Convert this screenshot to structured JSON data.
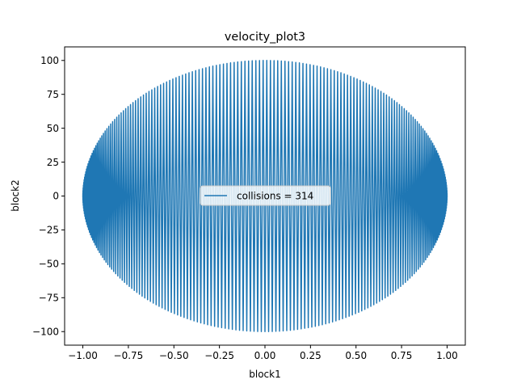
{
  "chart_data": {
    "type": "line",
    "title": "velocity_plot3",
    "xlabel": "block1",
    "ylabel": "block2",
    "xlim": [
      -1.1,
      1.1
    ],
    "ylim": [
      -110,
      110
    ],
    "xticks": [
      -1.0,
      -0.75,
      -0.5,
      -0.25,
      0.0,
      0.25,
      0.5,
      0.75,
      1.0
    ],
    "xtick_labels": [
      "−1.00",
      "−0.75",
      "−0.50",
      "−0.25",
      "0.00",
      "0.25",
      "0.50",
      "0.75",
      "1.00"
    ],
    "yticks": [
      -100,
      -75,
      -50,
      -25,
      0,
      25,
      50,
      75,
      100
    ],
    "ytick_labels": [
      "−100",
      "−75",
      "−50",
      "−25",
      "0",
      "25",
      "50",
      "75",
      "100"
    ],
    "grid": false,
    "legend_position": "center",
    "series": [
      {
        "name": "collisions = 314",
        "color": "#1f77b4",
        "collisions": 314,
        "x_amplitude": 1.0,
        "y_amplitude": 100
      }
    ]
  }
}
